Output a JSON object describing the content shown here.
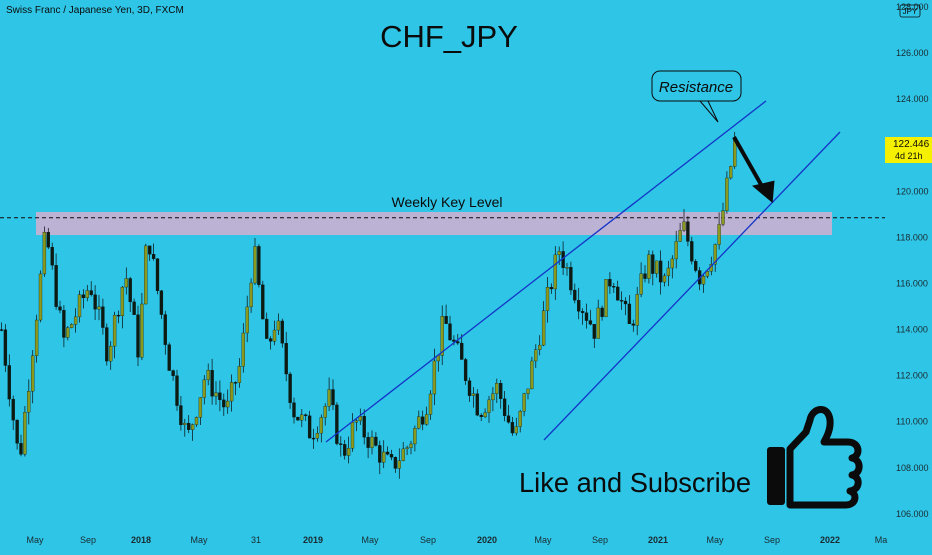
{
  "header": {
    "symbol_line": "Swiss Franc / Japanese Yen, 3D, FXCM",
    "currency_badge": "JPY"
  },
  "colors": {
    "background": "#2ec5e6",
    "candle_up": "#8a9a1e",
    "candle_down": "#0c1a12",
    "trend_lines": "#1434c8",
    "key_level_zone": "#d3aed0",
    "price_tag": "#f5f000",
    "text": "#0b0b0b"
  },
  "chart_data": {
    "type": "candlestick",
    "title": "CHF_JPY",
    "xlabel": "",
    "ylabel": "",
    "ylim": [
      105.3,
      128.3
    ],
    "y_ticks": [
      "128.000",
      "126.000",
      "124.000",
      "122.000",
      "120.000",
      "118.000",
      "116.000",
      "114.000",
      "112.000",
      "110.000",
      "108.000",
      "106.000"
    ],
    "x_ticks": [
      "May",
      "Sep",
      "2018",
      "May",
      "31",
      "2019",
      "May",
      "Sep",
      "2020",
      "May",
      "Sep",
      "2021",
      "May",
      "Sep",
      "2022",
      "Ma"
    ],
    "last_price": {
      "value": "122.446",
      "countdown": "4d 21h"
    },
    "key_level": {
      "label": "Weekly Key Level",
      "zone": [
        118.1,
        119.1
      ],
      "dashed_line": 118.85
    },
    "annotations": {
      "resistance": "Resistance",
      "call_to_action": "Like and Subscribe"
    },
    "trend_channel": [
      {
        "name": "upper",
        "from": {
          "x": 0.0,
          "y": 109.2
        },
        "to": {
          "x": 1.0,
          "y": 124.3
        }
      },
      {
        "name": "lower",
        "from": {
          "x": 0.0,
          "y": 108.8
        },
        "to": {
          "x": 1.0,
          "y": 123.0
        }
      }
    ],
    "price_path": [
      [
        0.0,
        114.0
      ],
      [
        0.02,
        108.2
      ],
      [
        0.05,
        118.2
      ],
      [
        0.07,
        113.5
      ],
      [
        0.1,
        116.0
      ],
      [
        0.12,
        113.0
      ],
      [
        0.14,
        116.5
      ],
      [
        0.155,
        113.0
      ],
      [
        0.165,
        118.3
      ],
      [
        0.19,
        112.5
      ],
      [
        0.21,
        109.2
      ],
      [
        0.23,
        112.0
      ],
      [
        0.255,
        110.5
      ],
      [
        0.27,
        112.5
      ],
      [
        0.285,
        117.5
      ],
      [
        0.3,
        113.0
      ],
      [
        0.31,
        114.5
      ],
      [
        0.33,
        110.5
      ],
      [
        0.35,
        109.5
      ],
      [
        0.37,
        111.0
      ],
      [
        0.385,
        108.5
      ],
      [
        0.4,
        110.0
      ],
      [
        0.42,
        109.0
      ],
      [
        0.44,
        108.0
      ],
      [
        0.46,
        109.0
      ],
      [
        0.48,
        110.8
      ],
      [
        0.5,
        114.4
      ],
      [
        0.52,
        112.5
      ],
      [
        0.54,
        110.5
      ],
      [
        0.56,
        111.5
      ],
      [
        0.58,
        109.2
      ],
      [
        0.6,
        112.5
      ],
      [
        0.63,
        117.5
      ],
      [
        0.65,
        115.5
      ],
      [
        0.67,
        114.0
      ],
      [
        0.69,
        116.5
      ],
      [
        0.71,
        114.0
      ],
      [
        0.73,
        117.0
      ],
      [
        0.75,
        116.0
      ],
      [
        0.77,
        118.5
      ],
      [
        0.79,
        116.2
      ],
      [
        0.81,
        118.0
      ],
      [
        0.83,
        122.4
      ]
    ]
  }
}
